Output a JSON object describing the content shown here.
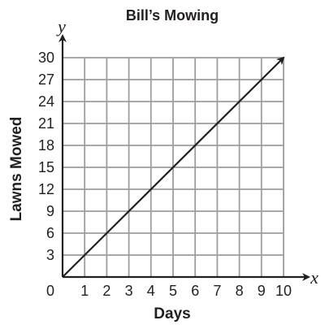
{
  "chart_data": {
    "type": "line",
    "title": "Bill’s Mowing",
    "xlabel": "Days",
    "ylabel": "Lawns Mowed",
    "x_var": "x",
    "y_var": "y",
    "origin_label": "0",
    "xlim": [
      0,
      10
    ],
    "ylim": [
      0,
      30
    ],
    "x_ticks": [
      1,
      2,
      3,
      4,
      5,
      6,
      7,
      8,
      9,
      10
    ],
    "y_ticks": [
      3,
      6,
      9,
      12,
      15,
      18,
      21,
      24,
      27,
      30
    ],
    "grid": true,
    "series": [
      {
        "x": [
          0,
          10
        ],
        "y": [
          0,
          30
        ]
      }
    ],
    "colors": {
      "line": "#231f20",
      "grid": "#9d9d9d"
    }
  }
}
